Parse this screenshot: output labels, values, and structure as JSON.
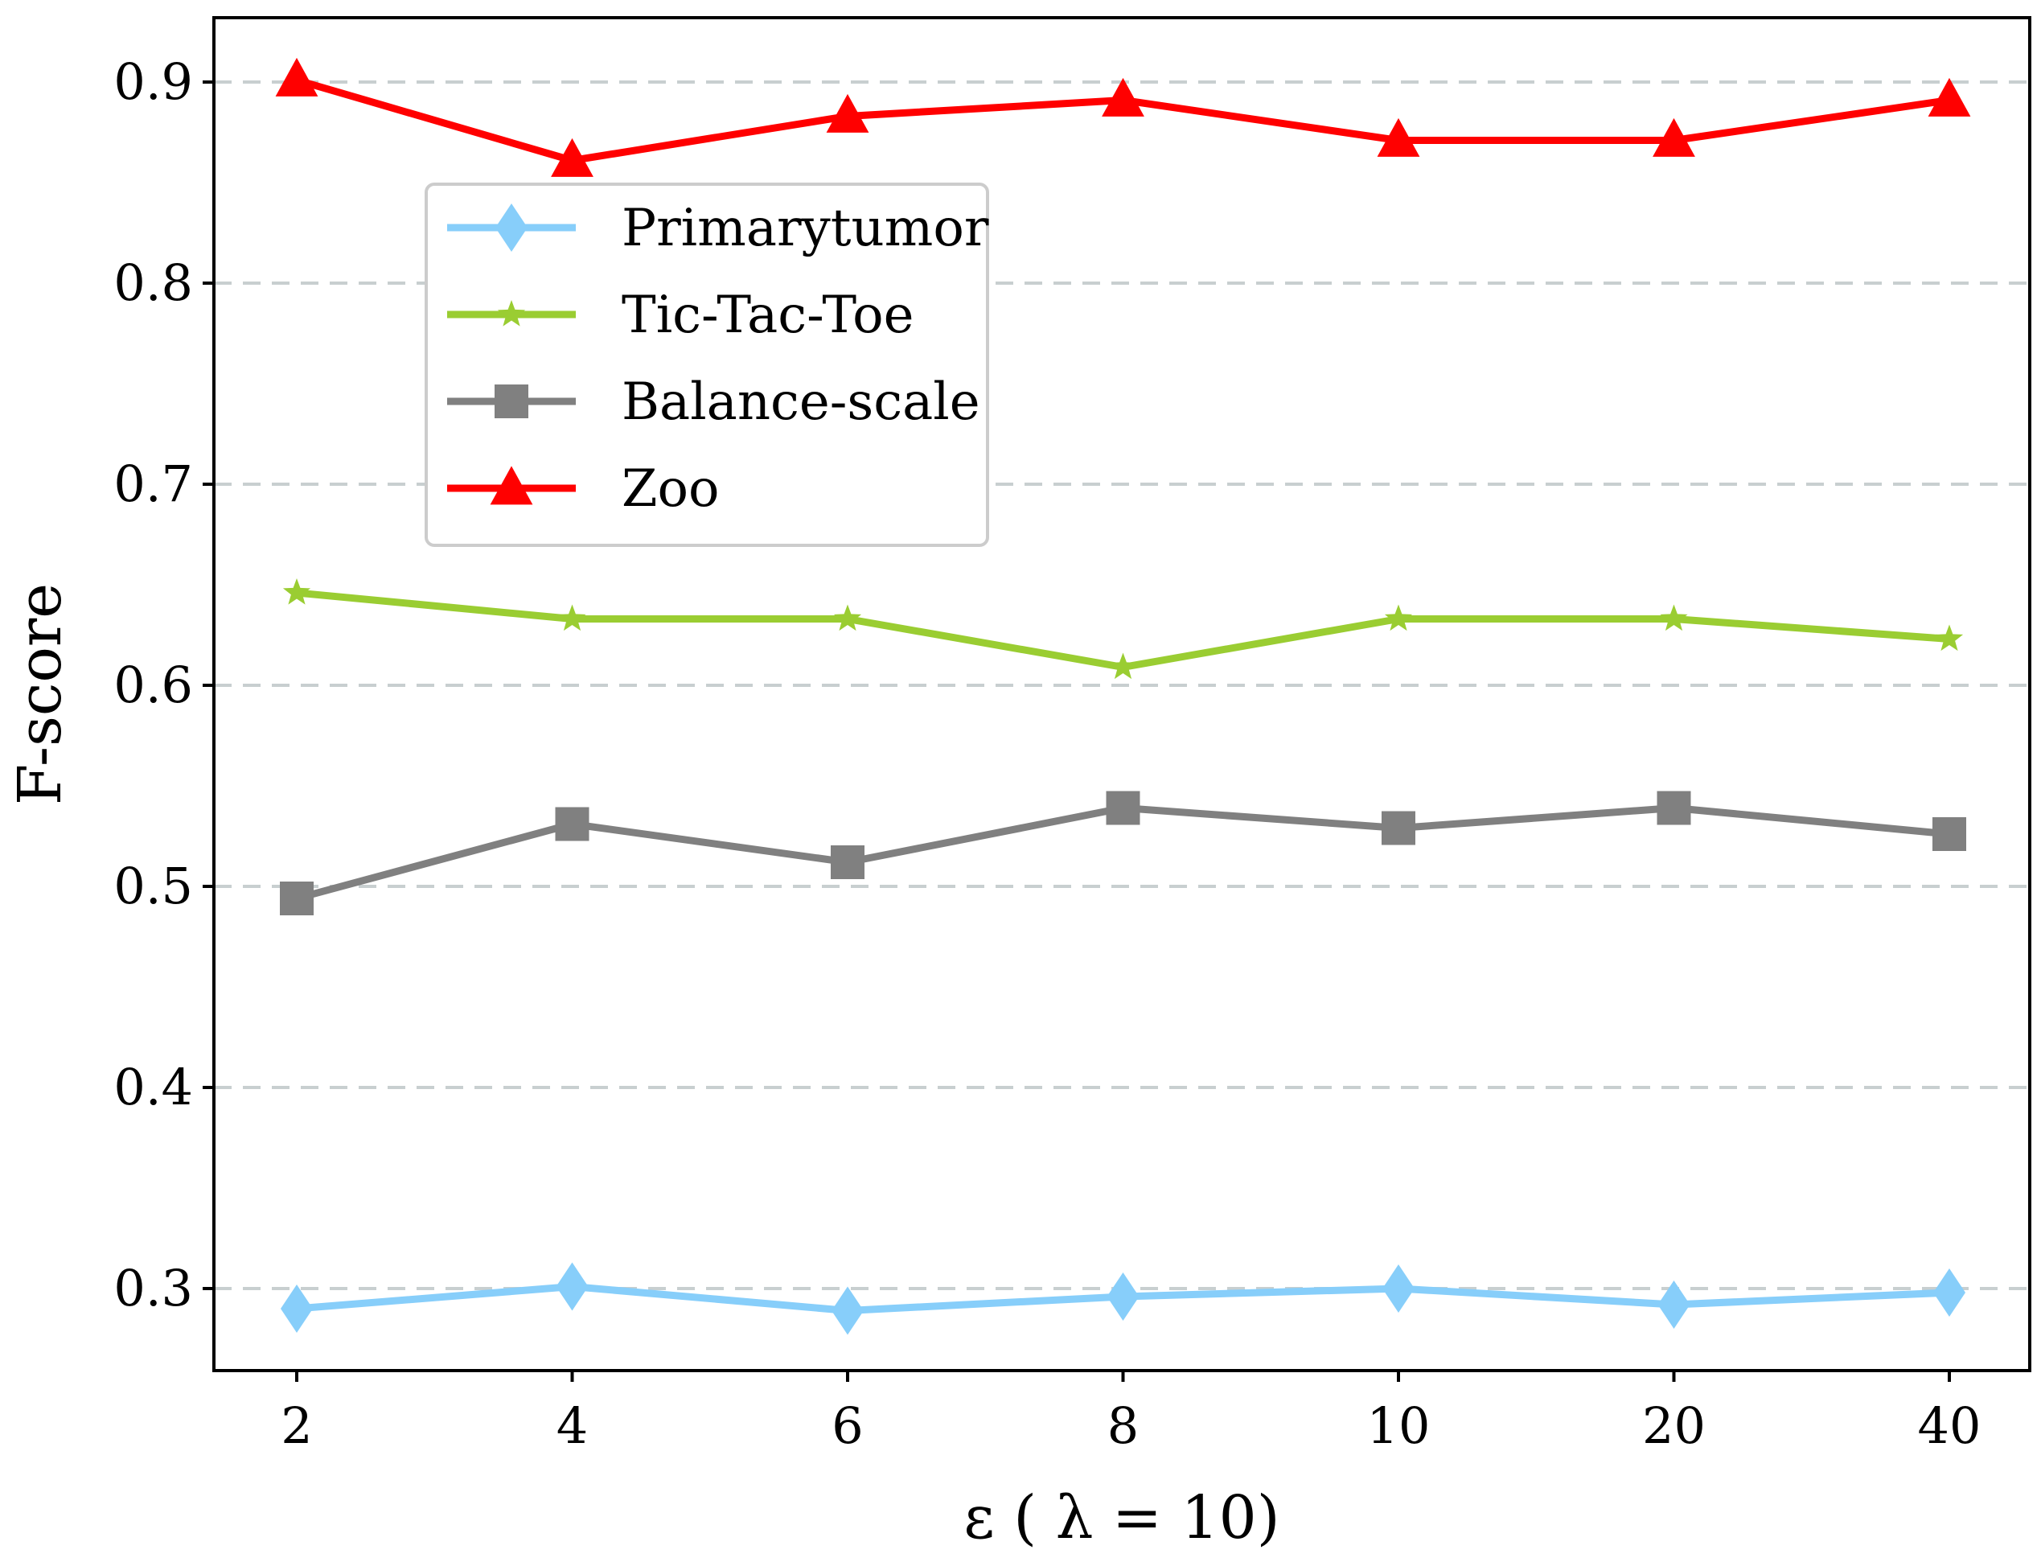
{
  "chart_data": {
    "type": "line",
    "title": "",
    "xlabel": "ε ( λ = 10)",
    "ylabel": "F-score",
    "categories": [
      "2",
      "4",
      "6",
      "8",
      "10",
      "20",
      "40"
    ],
    "yticks": [
      "0.3",
      "0.4",
      "0.5",
      "0.6",
      "0.7",
      "0.8",
      "0.9"
    ],
    "ylim": [
      0.255,
      0.93
    ],
    "grid": "horizontal dashed",
    "legend_position": "upper-left",
    "series": [
      {
        "name": "Primarytumor",
        "color": "#87cefa",
        "marker": "diamond",
        "values": [
          0.29,
          0.301,
          0.289,
          0.296,
          0.3,
          0.292,
          0.298
        ]
      },
      {
        "name": "Tic-Tac-Toe",
        "color": "#9acd32",
        "marker": "star",
        "values": [
          0.646,
          0.633,
          0.633,
          0.609,
          0.633,
          0.633,
          0.623
        ]
      },
      {
        "name": "Balance-scale",
        "color": "#808080",
        "marker": "square",
        "values": [
          0.494,
          0.531,
          0.512,
          0.539,
          0.529,
          0.539,
          0.526
        ]
      },
      {
        "name": "Zoo",
        "color": "#ff0000",
        "marker": "triangle",
        "values": [
          0.901,
          0.861,
          0.883,
          0.891,
          0.871,
          0.871,
          0.891
        ]
      }
    ]
  }
}
